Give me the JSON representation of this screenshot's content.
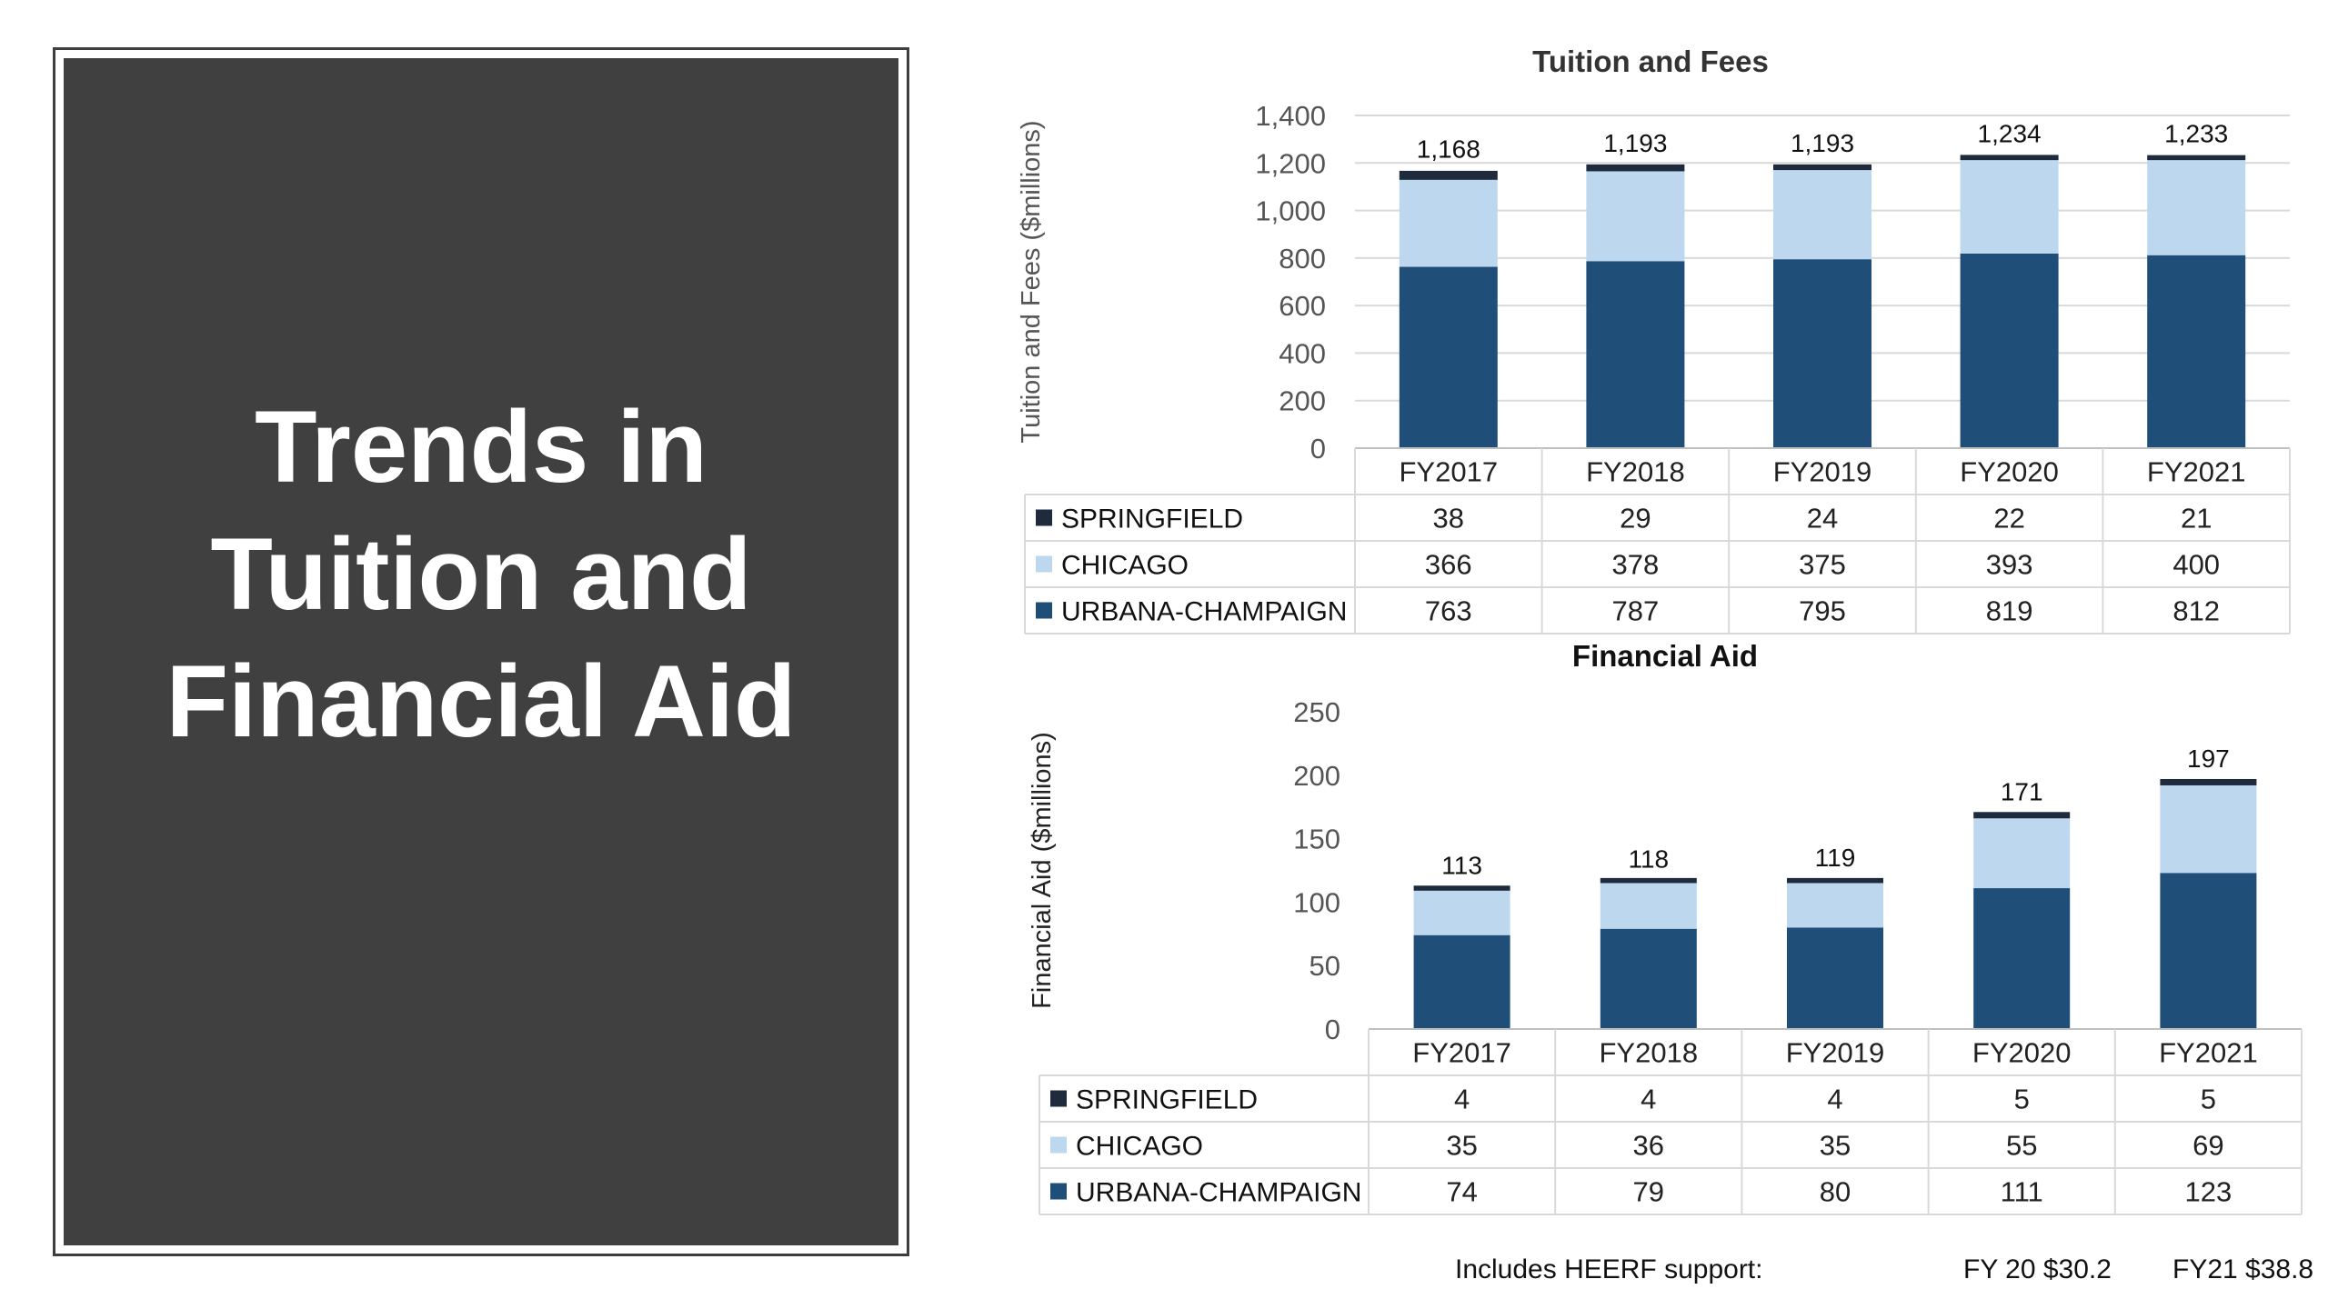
{
  "slide_title": [
    "Trends in",
    "Tuition and",
    "Financial Aid"
  ],
  "colors": {
    "springfield": "#1d2b3c",
    "chicago": "#bdd7ee",
    "urbana": "#1f4e79",
    "panel": "#404040"
  },
  "chart_data": [
    {
      "type": "bar",
      "stacked": true,
      "title": "Tuition and Fees",
      "ylabel": "Tuition and Fees ($millions)",
      "xlabel": "",
      "ylim": [
        0,
        1400
      ],
      "yticks": [
        0,
        200,
        400,
        600,
        800,
        1000,
        1200,
        1400
      ],
      "ytick_labels": [
        "0",
        "200",
        "400",
        "600",
        "800",
        "1,000",
        "1,200",
        "1,400"
      ],
      "categories": [
        "FY2017",
        "FY2018",
        "FY2019",
        "FY2020",
        "FY2021"
      ],
      "totals": [
        1168,
        1193,
        1193,
        1234,
        1233
      ],
      "total_labels": [
        "1,168",
        "1,193",
        "1,193",
        "1,234",
        "1,233"
      ],
      "series": [
        {
          "name": "SPRINGFIELD",
          "values": [
            38,
            29,
            24,
            22,
            21
          ]
        },
        {
          "name": "CHICAGO",
          "values": [
            366,
            378,
            375,
            393,
            400
          ]
        },
        {
          "name": "URBANA-CHAMPAIGN",
          "values": [
            763,
            787,
            795,
            819,
            812
          ]
        }
      ],
      "data_table": true,
      "grid": true
    },
    {
      "type": "bar",
      "stacked": true,
      "title": "Financial Aid",
      "ylabel": "Financial Aid ($millions)",
      "xlabel": "",
      "ylim": [
        0,
        250
      ],
      "yticks": [
        0,
        50,
        100,
        150,
        200,
        250
      ],
      "ytick_labels": [
        "0",
        "50",
        "100",
        "150",
        "200",
        "250"
      ],
      "categories": [
        "FY2017",
        "FY2018",
        "FY2019",
        "FY2020",
        "FY2021"
      ],
      "totals": [
        113,
        118,
        119,
        171,
        197
      ],
      "total_labels": [
        "113",
        "118",
        "119",
        "171",
        "197"
      ],
      "series": [
        {
          "name": "SPRINGFIELD",
          "values": [
            4,
            4,
            4,
            5,
            5
          ]
        },
        {
          "name": "CHICAGO",
          "values": [
            35,
            36,
            35,
            55,
            69
          ]
        },
        {
          "name": "URBANA-CHAMPAIGN",
          "values": [
            74,
            79,
            80,
            111,
            123
          ]
        }
      ],
      "data_table": true,
      "grid": false
    }
  ],
  "footnote": {
    "label": "Includes HEERF support:",
    "fy20": "FY 20  $30.2",
    "fy21": "FY21 $38.8"
  }
}
